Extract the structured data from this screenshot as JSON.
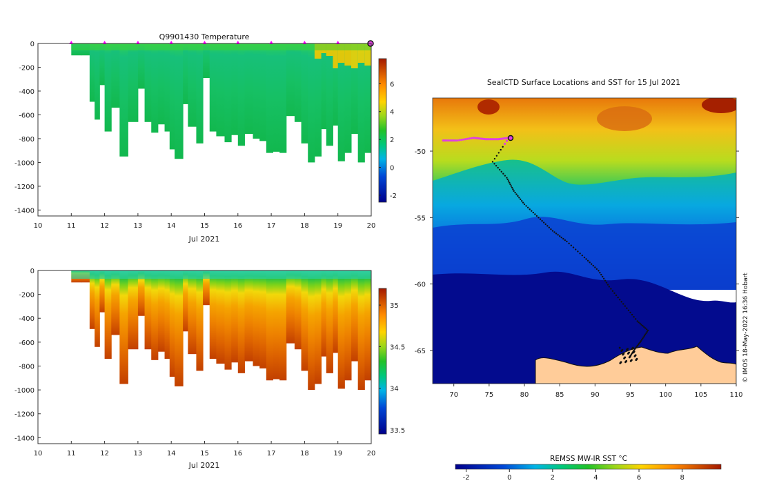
{
  "figure": {
    "credit": "© IMOS 18-May-2022 16:36 Hobart"
  },
  "chart_data": [
    {
      "type": "heatmap",
      "id": "temperature",
      "title": "Q9901430  Temperature",
      "xlabel": "Jul 2021",
      "ylabel": "",
      "xlim": [
        10,
        20
      ],
      "ylim": [
        -1450,
        0
      ],
      "xticks": [
        "10",
        "11",
        "12",
        "13",
        "14",
        "15",
        "16",
        "17",
        "18",
        "19",
        "20"
      ],
      "yticks": [
        "0",
        "-200",
        "-400",
        "-600",
        "-800",
        "-1000",
        "-1200",
        "-1400"
      ],
      "profile_markers_x": [
        11,
        12,
        13,
        14,
        15,
        16,
        17,
        18,
        19
      ],
      "last_marker_x": 20,
      "colorbar": {
        "ticks": [
          "-2",
          "0",
          "2",
          "4",
          "6"
        ],
        "range": [
          -2.5,
          7.8
        ]
      },
      "profiles": [
        {
          "x": 11.0,
          "depth": 100
        },
        {
          "x": 11.3,
          "depth": 100
        },
        {
          "x": 11.55,
          "depth": 490
        },
        {
          "x": 11.7,
          "depth": 640
        },
        {
          "x": 11.85,
          "depth": 350
        },
        {
          "x": 12.0,
          "depth": 740
        },
        {
          "x": 12.2,
          "depth": 540
        },
        {
          "x": 12.45,
          "depth": 950
        },
        {
          "x": 12.7,
          "depth": 660
        },
        {
          "x": 13.0,
          "depth": 380
        },
        {
          "x": 13.2,
          "depth": 660
        },
        {
          "x": 13.4,
          "depth": 750
        },
        {
          "x": 13.6,
          "depth": 680
        },
        {
          "x": 13.8,
          "depth": 740
        },
        {
          "x": 13.95,
          "depth": 890
        },
        {
          "x": 14.1,
          "depth": 970
        },
        {
          "x": 14.35,
          "depth": 510
        },
        {
          "x": 14.5,
          "depth": 700
        },
        {
          "x": 14.75,
          "depth": 840
        },
        {
          "x": 14.95,
          "depth": 290
        },
        {
          "x": 15.15,
          "depth": 740
        },
        {
          "x": 15.35,
          "depth": 780
        },
        {
          "x": 15.6,
          "depth": 830
        },
        {
          "x": 15.8,
          "depth": 770
        },
        {
          "x": 16.0,
          "depth": 860
        },
        {
          "x": 16.2,
          "depth": 760
        },
        {
          "x": 16.45,
          "depth": 800
        },
        {
          "x": 16.65,
          "depth": 820
        },
        {
          "x": 16.85,
          "depth": 920
        },
        {
          "x": 17.05,
          "depth": 910
        },
        {
          "x": 17.25,
          "depth": 920
        },
        {
          "x": 17.45,
          "depth": 610
        },
        {
          "x": 17.7,
          "depth": 660
        },
        {
          "x": 17.9,
          "depth": 840
        },
        {
          "x": 18.1,
          "depth": 1000
        },
        {
          "x": 18.3,
          "depth": 950
        },
        {
          "x": 18.5,
          "depth": 720
        },
        {
          "x": 18.65,
          "depth": 860
        },
        {
          "x": 18.85,
          "depth": 690
        },
        {
          "x": 19.0,
          "depth": 990
        },
        {
          "x": 19.2,
          "depth": 920
        },
        {
          "x": 19.4,
          "depth": 760
        },
        {
          "x": 19.6,
          "depth": 1000
        },
        {
          "x": 19.8,
          "depth": 920
        }
      ]
    },
    {
      "type": "heatmap",
      "id": "salinity",
      "title": "",
      "xlabel": "Jul 2021",
      "ylabel": "",
      "xlim": [
        10,
        20
      ],
      "ylim": [
        -1450,
        0
      ],
      "xticks": [
        "10",
        "11",
        "12",
        "13",
        "14",
        "15",
        "16",
        "17",
        "18",
        "19",
        "20"
      ],
      "yticks": [
        "0",
        "-200",
        "-400",
        "-600",
        "-800",
        "-1000",
        "-1200",
        "-1400"
      ],
      "colorbar": {
        "ticks": [
          "33.5",
          "34",
          "34.5",
          "35"
        ],
        "range": [
          33.45,
          35.2
        ]
      }
    },
    {
      "type": "heatmap",
      "id": "sst-map",
      "title": "SealCTD Surface Locations and SST for 15 Jul 2021",
      "xlim": [
        67,
        110
      ],
      "ylim": [
        -67.5,
        -46
      ],
      "xticks": [
        "70",
        "75",
        "80",
        "85",
        "90",
        "95",
        "100",
        "105",
        "110"
      ],
      "yticks": [
        "-50",
        "-55",
        "-60",
        "-65"
      ],
      "colorbar": {
        "label": "REMSS MW-IR SST °C",
        "ticks": [
          "-2",
          "0",
          "2",
          "4",
          "6",
          "8"
        ],
        "range": [
          -2.5,
          9.8
        ]
      },
      "track": [
        [
          68.5,
          -49.2
        ],
        [
          70.5,
          -49.2
        ],
        [
          72.8,
          -49.0
        ],
        [
          74.5,
          -49.1
        ],
        [
          76.3,
          -49.1
        ],
        [
          77.8,
          -49.0
        ],
        [
          75.5,
          -50.8
        ],
        [
          77.5,
          -52.0
        ],
        [
          78.5,
          -53.0
        ],
        [
          80.0,
          -54.0
        ],
        [
          82.0,
          -55.0
        ],
        [
          84.0,
          -56.0
        ],
        [
          86.0,
          -56.8
        ],
        [
          88.5,
          -58.0
        ],
        [
          90.5,
          -59.0
        ],
        [
          92.0,
          -60.2
        ],
        [
          94.0,
          -61.5
        ],
        [
          96.0,
          -62.8
        ],
        [
          97.5,
          -63.5
        ],
        [
          96.5,
          -64.3
        ],
        [
          95.5,
          -65.0
        ],
        [
          94.8,
          -65.6
        ]
      ]
    }
  ]
}
